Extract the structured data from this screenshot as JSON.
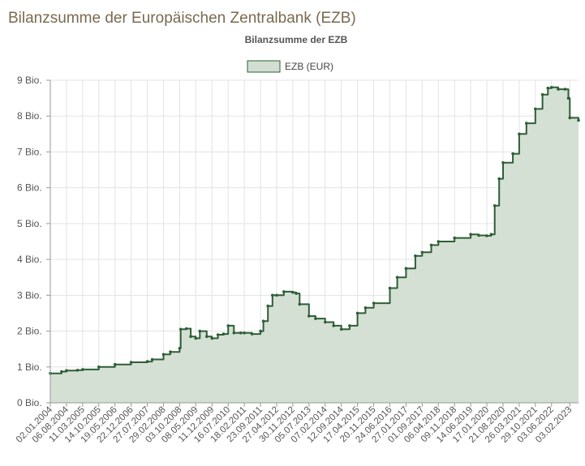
{
  "page_title": "Bilanzsumme der Europäischen Zentralbank (EZB)",
  "chart_data": {
    "type": "area",
    "title": "Bilanzsumme der EZB",
    "xlabel": "",
    "ylabel": "",
    "legend": {
      "position": "top-center",
      "entries": [
        "EZB (EUR)"
      ]
    },
    "grid": true,
    "ylim": [
      0,
      9
    ],
    "y_ticks": [
      {
        "value": 0,
        "label": "0 Bio."
      },
      {
        "value": 1,
        "label": "1 Bio."
      },
      {
        "value": 2,
        "label": "2 Bio."
      },
      {
        "value": 3,
        "label": "3 Bio."
      },
      {
        "value": 4,
        "label": "4 Bio."
      },
      {
        "value": 5,
        "label": "5 Bio."
      },
      {
        "value": 6,
        "label": "6 Bio."
      },
      {
        "value": 7,
        "label": "7 Bio."
      },
      {
        "value": 8,
        "label": "8 Bio."
      },
      {
        "value": 9,
        "label": "9 Bio."
      }
    ],
    "x_ticks": [
      "02.01.2004",
      "06.08.2004",
      "11.03.2005",
      "14.10.2005",
      "19.05.2006",
      "22.12.2006",
      "27.07.2007",
      "29.02.2008",
      "03.10.2008",
      "08.05.2009",
      "11.12.2009",
      "16.07.2010",
      "18.02.2011",
      "23.09.2011",
      "27.04.2012",
      "30.11.2012",
      "05.07.2013",
      "07.02.2014",
      "12.09.2014",
      "17.04.2015",
      "20.11.2015",
      "24.06.2016",
      "27.01.2017",
      "01.09.2017",
      "06.04.2018",
      "09.11.2018",
      "14.06.2019",
      "17.01.2020",
      "21.08.2020",
      "26.03.2021",
      "29.10.2021",
      "03.06.2022",
      "03.02.2023"
    ],
    "x_range": [
      "2004-01-02",
      "2023-05-31"
    ],
    "colors": {
      "line": "#2e5e36",
      "fill": "#d3ded3",
      "grid": "#e3e3e3",
      "axis": "#999999"
    },
    "series": [
      {
        "name": "EZB (EUR)",
        "x": [
          "2004-01-02",
          "2004-06-01",
          "2004-08-06",
          "2005-01-01",
          "2005-03-11",
          "2005-10-14",
          "2006-05-19",
          "2006-12-22",
          "2007-07-27",
          "2007-10-01",
          "2008-02-29",
          "2008-06-01",
          "2008-10-03",
          "2008-10-17",
          "2008-12-31",
          "2009-03-01",
          "2009-05-08",
          "2009-07-01",
          "2009-10-01",
          "2009-12-11",
          "2010-03-01",
          "2010-05-15",
          "2010-07-16",
          "2010-10-01",
          "2010-12-31",
          "2011-02-18",
          "2011-06-01",
          "2011-09-23",
          "2011-11-01",
          "2011-12-31",
          "2012-03-01",
          "2012-04-27",
          "2012-08-01",
          "2012-11-30",
          "2013-01-15",
          "2013-03-01",
          "2013-07-05",
          "2013-10-01",
          "2014-02-07",
          "2014-06-01",
          "2014-09-12",
          "2015-01-01",
          "2015-04-17",
          "2015-08-01",
          "2015-11-20",
          "2016-06-24",
          "2016-10-01",
          "2017-01-27",
          "2017-06-01",
          "2017-09-01",
          "2018-01-01",
          "2018-04-06",
          "2018-11-09",
          "2019-06-14",
          "2019-10-01",
          "2020-01-17",
          "2020-03-15",
          "2020-05-01",
          "2020-06-30",
          "2020-08-21",
          "2020-12-31",
          "2021-03-26",
          "2021-07-01",
          "2021-10-29",
          "2022-02-01",
          "2022-04-15",
          "2022-06-03",
          "2022-09-01",
          "2022-12-01",
          "2023-01-15",
          "2023-02-03",
          "2023-05-31"
        ],
        "values": [
          0.82,
          0.87,
          0.9,
          0.91,
          0.93,
          1.0,
          1.07,
          1.13,
          1.15,
          1.21,
          1.35,
          1.42,
          1.52,
          2.05,
          2.07,
          1.85,
          1.8,
          2.0,
          1.85,
          1.8,
          1.9,
          1.92,
          2.15,
          1.95,
          1.95,
          1.95,
          1.92,
          2.0,
          2.28,
          2.7,
          3.0,
          3.0,
          3.1,
          3.08,
          3.05,
          2.75,
          2.42,
          2.35,
          2.25,
          2.15,
          2.05,
          2.15,
          2.5,
          2.65,
          2.78,
          3.2,
          3.5,
          3.75,
          4.1,
          4.2,
          4.4,
          4.5,
          4.6,
          4.7,
          4.67,
          4.66,
          4.7,
          5.5,
          6.25,
          6.7,
          6.95,
          7.5,
          7.8,
          8.2,
          8.6,
          8.78,
          8.8,
          8.75,
          8.75,
          8.5,
          7.95,
          7.88
        ]
      }
    ]
  }
}
